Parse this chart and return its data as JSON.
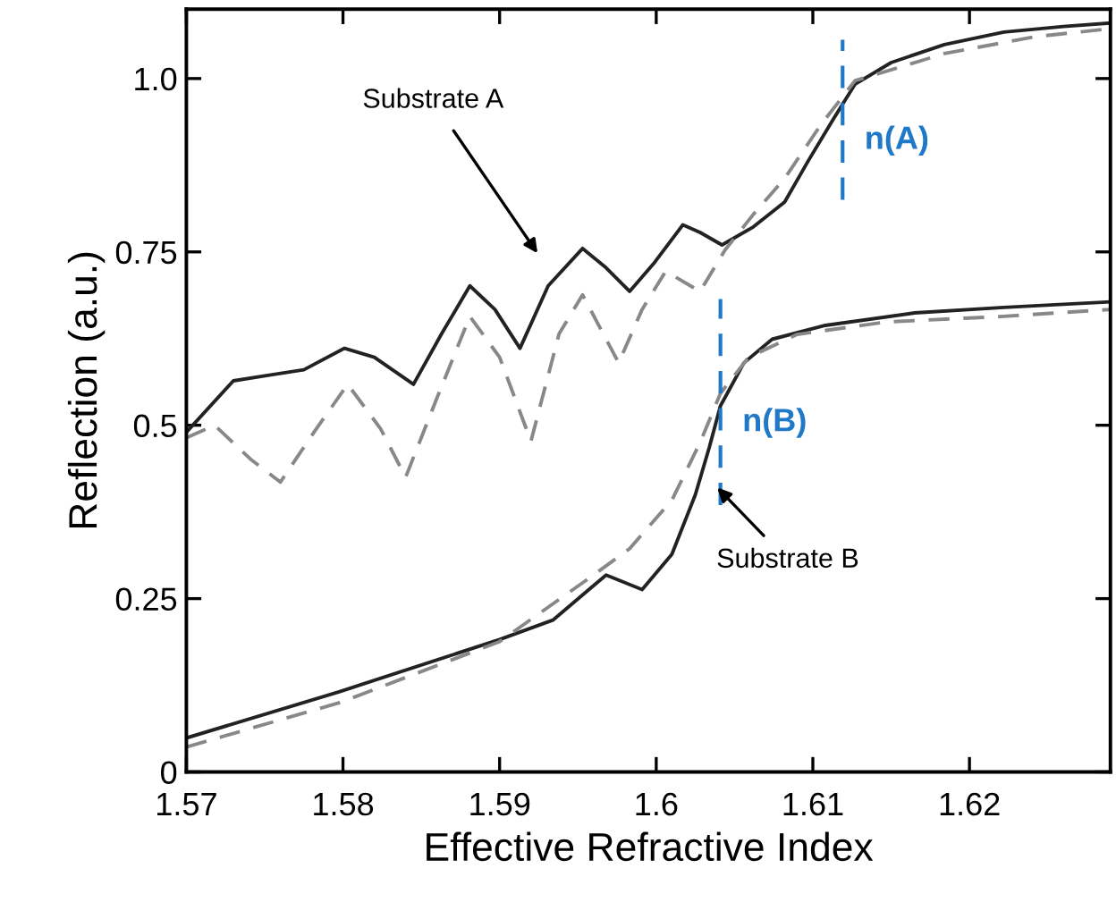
{
  "chart_data": {
    "type": "line",
    "xlabel": "Effective Refractive Index",
    "ylabel": "Reflection (a.u.)",
    "xlim": [
      1.57,
      1.629
    ],
    "ylim": [
      0,
      1.1
    ],
    "xticks": [
      1.57,
      1.58,
      1.59,
      1.6,
      1.61,
      1.62
    ],
    "yticks": [
      0,
      0.25,
      0.5,
      0.75,
      {
        "value": 1,
        "label": "1.0"
      }
    ],
    "grid": false,
    "marker": "none",
    "series": [
      {
        "color": "#222222",
        "line_style": "solid",
        "x": [
          1.57,
          1.573,
          1.5752,
          1.5775,
          1.5801,
          1.582,
          1.5845,
          1.5863,
          1.5881,
          1.5897,
          1.5913,
          1.5931,
          1.5953,
          1.5968,
          1.5983,
          1.5999,
          1.6017,
          1.6028,
          1.6042,
          1.6062,
          1.6082,
          1.6097,
          1.6113,
          1.6127,
          1.615,
          1.6184,
          1.6222,
          1.626,
          1.629
        ],
        "values": [
          0.49,
          0.564,
          0.572,
          0.58,
          0.611,
          0.598,
          0.559,
          0.632,
          0.701,
          0.667,
          0.611,
          0.701,
          0.755,
          0.727,
          0.693,
          0.735,
          0.789,
          0.778,
          0.76,
          0.786,
          0.822,
          0.881,
          0.941,
          0.992,
          1.023,
          1.049,
          1.067,
          1.075,
          1.08
        ]
      },
      {
        "color": "#888888",
        "line_style": "dashed",
        "x": [
          1.57,
          1.5718,
          1.5741,
          1.576,
          1.5783,
          1.5803,
          1.5824,
          1.584,
          1.5858,
          1.5881,
          1.59,
          1.592,
          1.5938,
          1.5953,
          1.5976,
          1.5991,
          1.6006,
          1.6028,
          1.6044,
          1.6062,
          1.6082,
          1.6105,
          1.6127,
          1.6184,
          1.6241,
          1.629
        ],
        "values": [
          0.482,
          0.5,
          0.451,
          0.418,
          0.495,
          0.559,
          0.495,
          0.425,
          0.528,
          0.657,
          0.598,
          0.477,
          0.632,
          0.688,
          0.59,
          0.667,
          0.722,
          0.693,
          0.753,
          0.804,
          0.856,
          0.933,
          0.997,
          1.036,
          1.06,
          1.072
        ]
      },
      {
        "color": "#222222",
        "line_style": "solid",
        "x": [
          1.57,
          1.5798,
          1.59,
          1.5934,
          1.5957,
          1.5968,
          1.5991,
          1.601,
          1.6025,
          1.6034,
          1.6041,
          1.6056,
          1.6074,
          1.6108,
          1.6165,
          1.6222,
          1.629
        ],
        "values": [
          0.049,
          0.116,
          0.191,
          0.219,
          0.263,
          0.284,
          0.263,
          0.314,
          0.4,
          0.469,
          0.528,
          0.59,
          0.624,
          0.644,
          0.662,
          0.67,
          0.678
        ]
      },
      {
        "color": "#888888",
        "line_style": "dashed",
        "x": [
          1.57,
          1.5798,
          1.59,
          1.596,
          1.5983,
          1.601,
          1.6028,
          1.6041,
          1.6059,
          1.609,
          1.6147,
          1.6222,
          1.629
        ],
        "values": [
          0.036,
          0.1,
          0.188,
          0.284,
          0.322,
          0.392,
          0.475,
          0.546,
          0.598,
          0.631,
          0.649,
          0.657,
          0.667
        ]
      }
    ],
    "ref_lines": [
      {
        "axis": "x",
        "value": 1.6119,
        "label": "n(A)",
        "color": "#1f78c8",
        "line_style": "dashed"
      },
      {
        "axis": "x",
        "value": 1.6041,
        "label": "n(B)",
        "color": "#1f78c8",
        "line_style": "dashed"
      }
    ],
    "annotations": [
      "Substrate A",
      {
        "text": "Substrate B",
        "x": 1.6039,
        "y": 0.41
      }
    ]
  }
}
